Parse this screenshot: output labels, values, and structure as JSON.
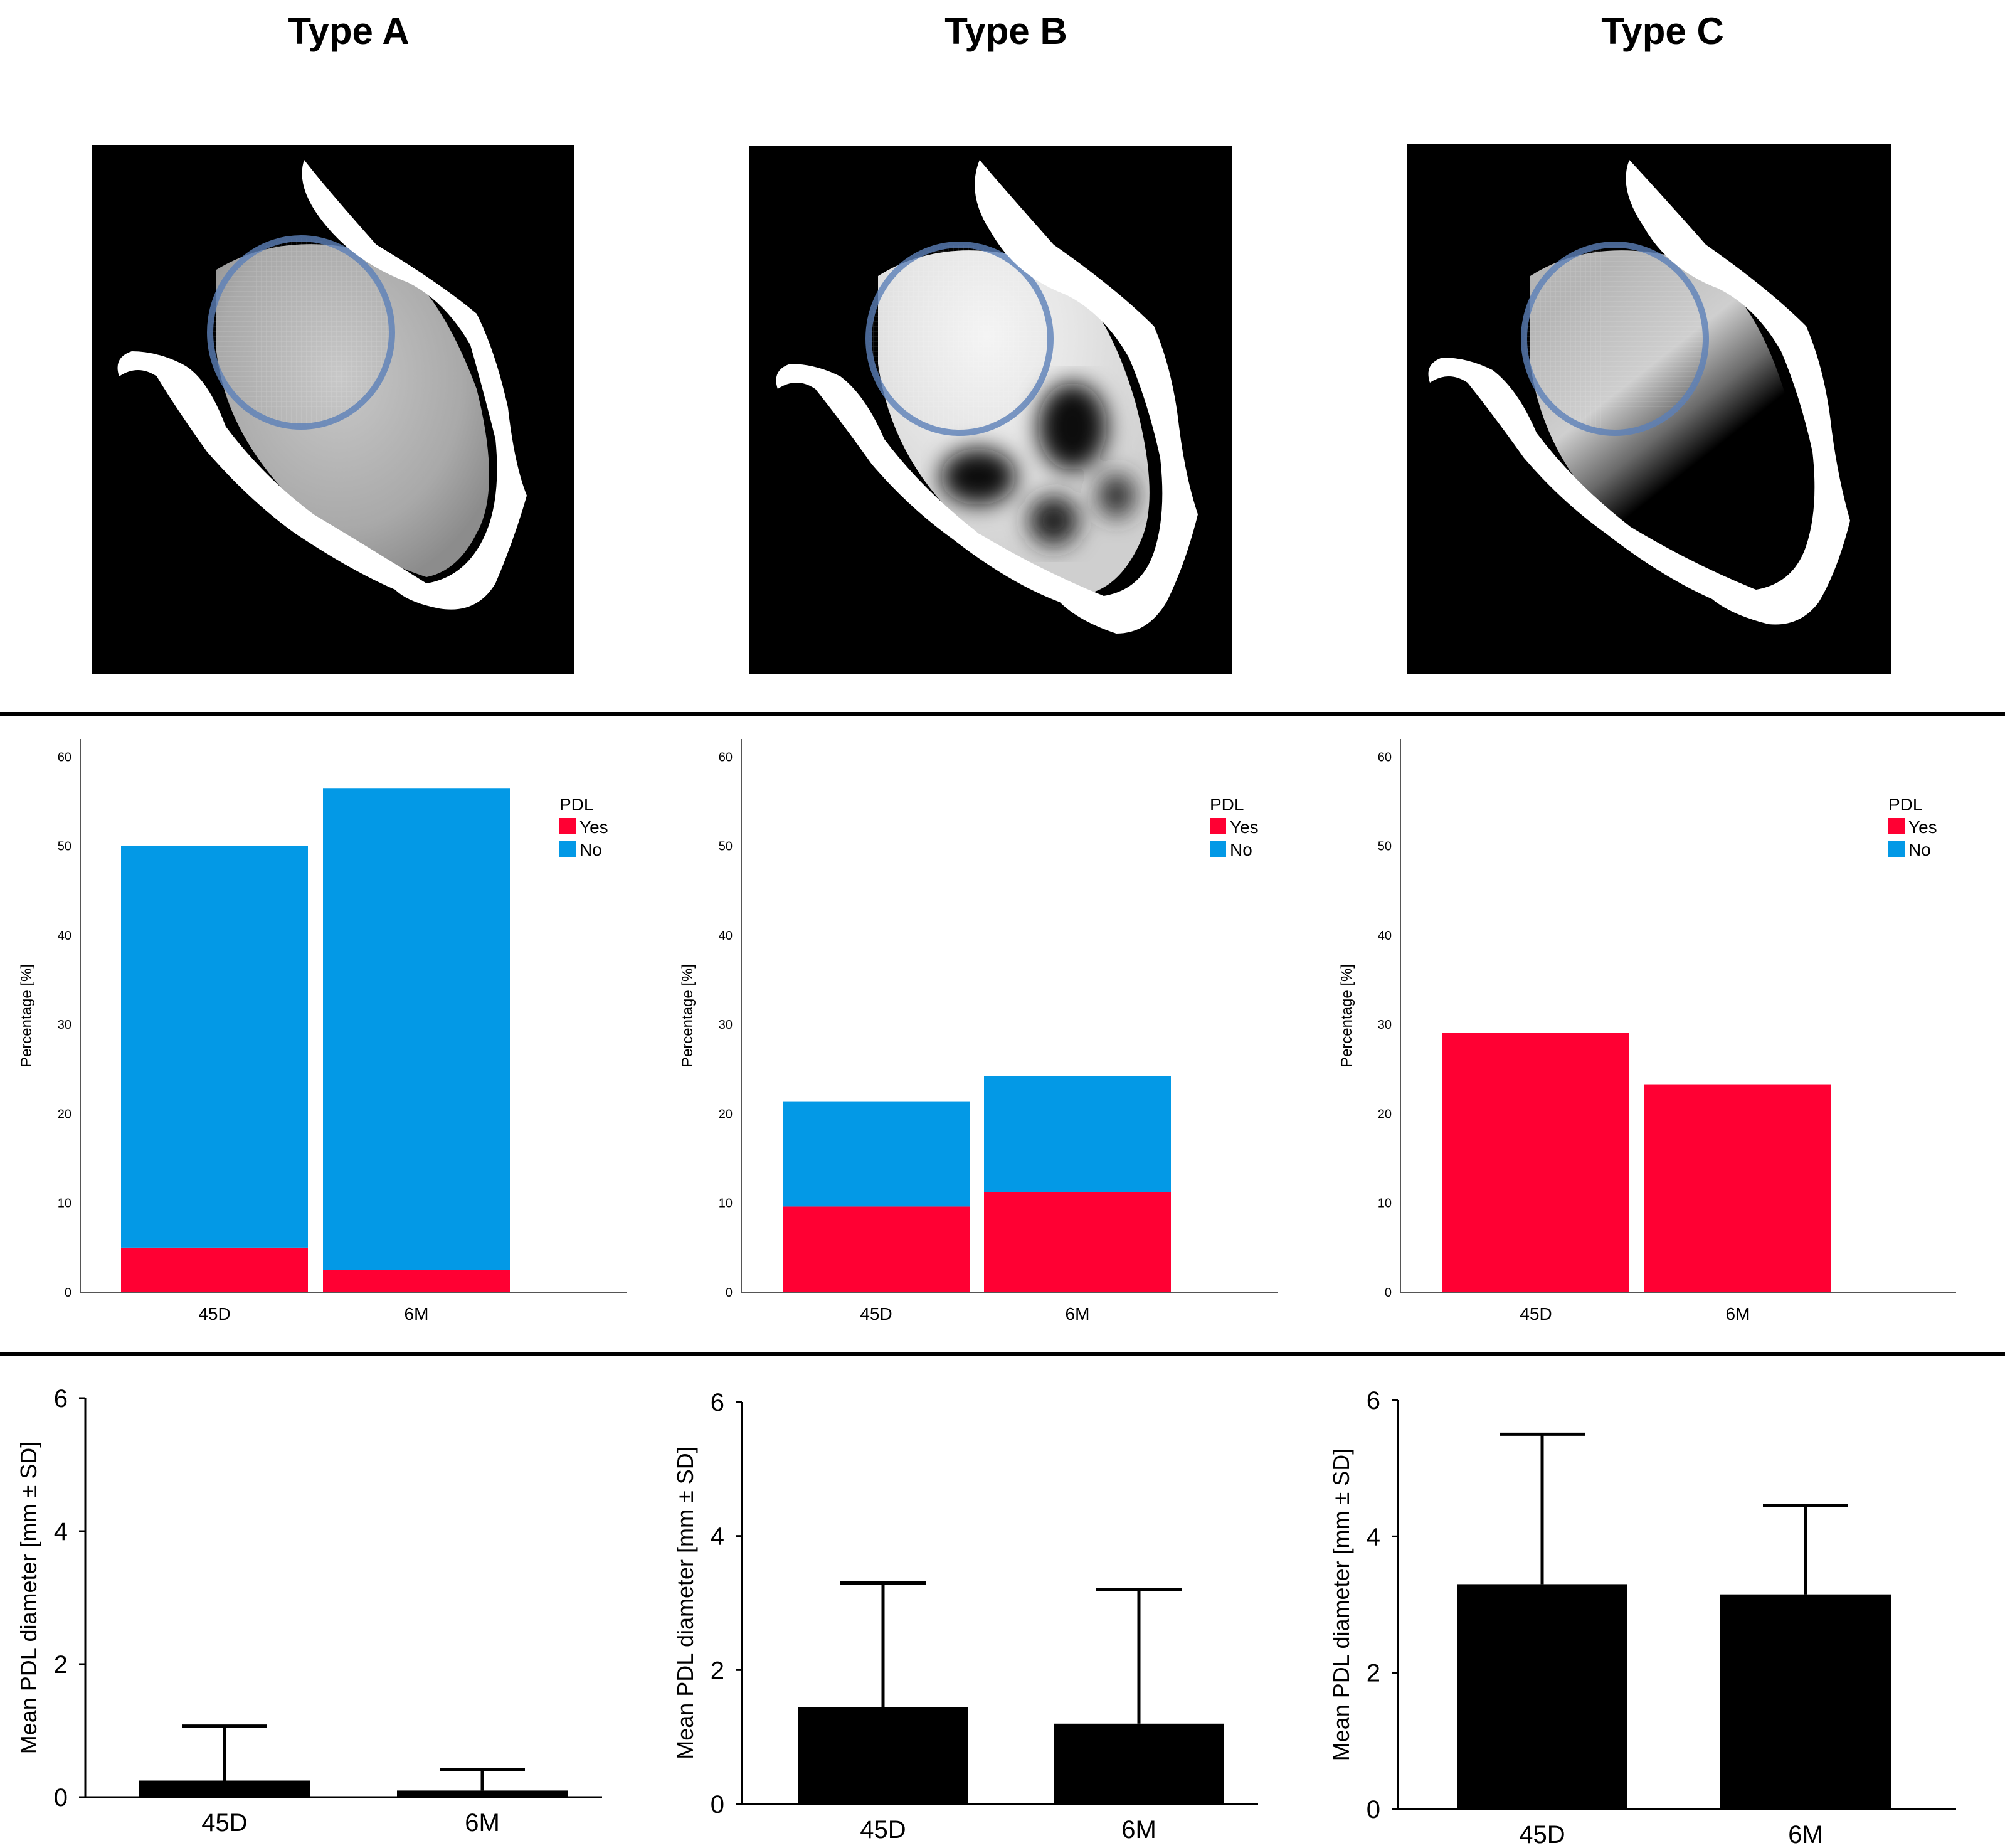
{
  "titles": [
    "Type A",
    "Type B",
    "Type C"
  ],
  "colors": {
    "yes": "#ff0033",
    "no": "#0399e6",
    "bar": "#000000",
    "axis": "#555555"
  },
  "images": [
    {
      "type": "A",
      "fill": "uniform-gray",
      "description_icon": "radiograph-tooth-uniform-icon"
    },
    {
      "type": "B",
      "fill": "patchy",
      "description_icon": "radiograph-tooth-patchy-icon"
    },
    {
      "type": "C",
      "fill": "dark-apical",
      "description_icon": "radiograph-tooth-dark-icon"
    }
  ],
  "chart_data": [
    {
      "type": "bar",
      "stacked": true,
      "panel": "Type A",
      "categories": [
        "45D",
        "6M"
      ],
      "series": [
        {
          "name": "Yes",
          "values": [
            5,
            2.5
          ]
        },
        {
          "name": "No",
          "values": [
            45,
            54
          ]
        }
      ],
      "ylabel": "Percentage [%]",
      "ylim": [
        0,
        62
      ],
      "yticks": [
        "0",
        "10",
        "20",
        "30",
        "40",
        "50",
        "60"
      ],
      "legend_title": "PDL",
      "legend_position": "top-right"
    },
    {
      "type": "bar",
      "stacked": true,
      "panel": "Type B",
      "categories": [
        "45D",
        "6M"
      ],
      "series": [
        {
          "name": "Yes",
          "values": [
            9.6,
            11.2
          ]
        },
        {
          "name": "No",
          "values": [
            11.8,
            13
          ]
        }
      ],
      "ylabel": "Percentage [%]",
      "ylim": [
        0,
        62
      ],
      "yticks": [
        "0",
        "10",
        "20",
        "30",
        "40",
        "50",
        "60"
      ],
      "legend_title": "PDL",
      "legend_position": "top-right"
    },
    {
      "type": "bar",
      "stacked": true,
      "panel": "Type C",
      "categories": [
        "45D",
        "6M"
      ],
      "series": [
        {
          "name": "Yes",
          "values": [
            29.1,
            23.3
          ]
        },
        {
          "name": "No",
          "values": [
            0,
            0
          ]
        }
      ],
      "ylabel": "Percentage [%]",
      "ylim": [
        0,
        62
      ],
      "yticks": [
        "0",
        "10",
        "20",
        "30",
        "40",
        "50",
        "60"
      ],
      "legend_title": "PDL",
      "legend_position": "top-right"
    },
    {
      "type": "bar",
      "error_bars": "SD",
      "panel": "Type A",
      "categories": [
        "45D",
        "6M"
      ],
      "values": [
        0.25,
        0.1
      ],
      "sd": [
        0.82,
        0.32
      ],
      "ylabel": "Mean PDL diameter [mm ± SD]",
      "ylim": [
        0,
        6
      ],
      "yticks": [
        "0",
        "2",
        "4",
        "6"
      ]
    },
    {
      "type": "bar",
      "error_bars": "SD",
      "panel": "Type B",
      "categories": [
        "45D",
        "6M"
      ],
      "values": [
        1.45,
        1.2
      ],
      "sd": [
        1.85,
        2.0
      ],
      "ylabel": "Mean PDL diameter [mm ± SD]",
      "ylim": [
        0,
        6
      ],
      "yticks": [
        "0",
        "2",
        "4",
        "6"
      ]
    },
    {
      "type": "bar",
      "error_bars": "SD",
      "panel": "Type C",
      "categories": [
        "45D",
        "6M"
      ],
      "values": [
        3.3,
        3.15
      ],
      "sd": [
        2.2,
        1.3
      ],
      "ylabel": "Mean PDL diameter [mm ± SD]",
      "ylim": [
        0,
        6
      ],
      "yticks": [
        "0",
        "2",
        "4",
        "6"
      ]
    }
  ]
}
